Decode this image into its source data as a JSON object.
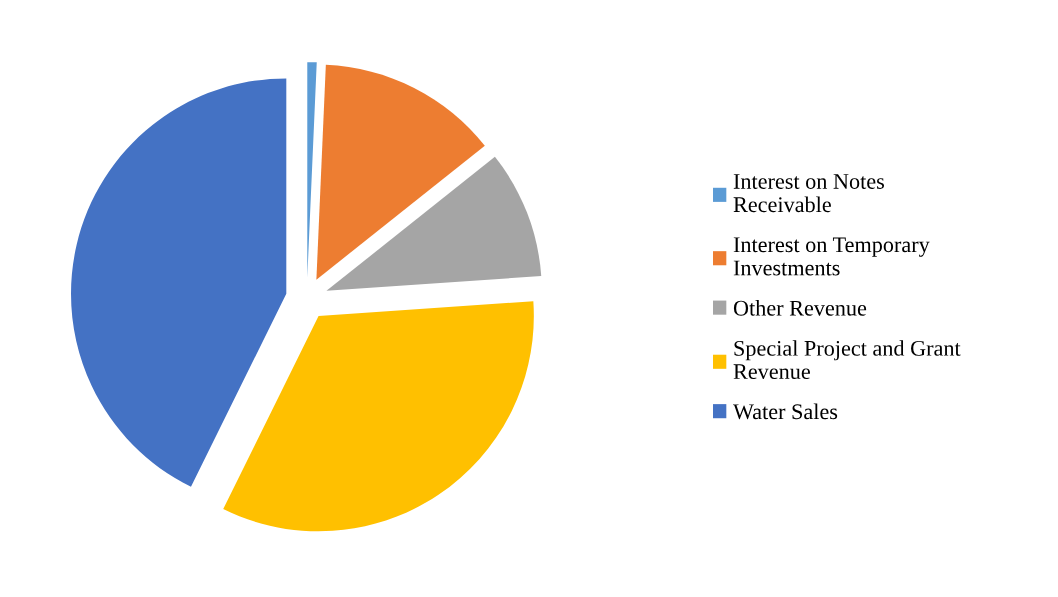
{
  "chart_data": {
    "type": "pie",
    "categories": [
      "Interest on Notes Receivable",
      "Interest on Temporary Investments",
      "Other Revenue",
      "Special Project and Grant Revenue",
      "Water Sales"
    ],
    "values": [
      0.7,
      13.6,
      9.6,
      33.4,
      42.7
    ],
    "colors": [
      "#5b9bd5",
      "#ed7d31",
      "#a5a5a5",
      "#ffc000",
      "#4472c4"
    ],
    "legend": "right"
  }
}
